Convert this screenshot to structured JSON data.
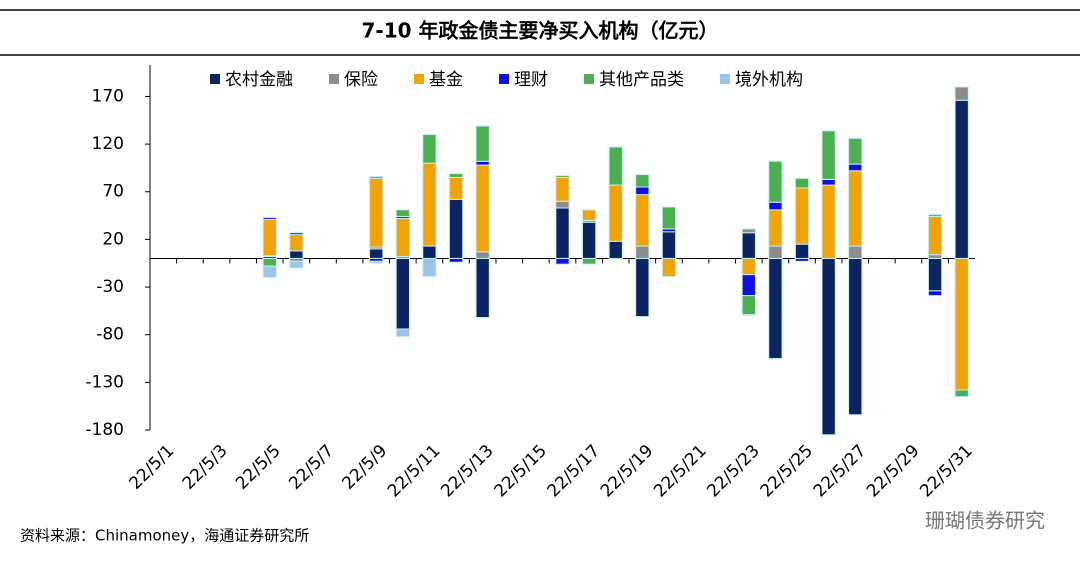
{
  "chart_data": {
    "type": "stacked-bar",
    "title": "7-10 年政金债主要净买入机构（亿元）",
    "source": "资料来源：Chinamoney，海通证券研究所",
    "watermark": "珊瑚债券研究",
    "categories": [
      "22/5/1",
      null,
      "22/5/3",
      null,
      "22/5/5",
      null,
      "22/5/7",
      null,
      "22/5/9",
      null,
      "22/5/11",
      null,
      "22/5/13",
      null,
      "22/5/15",
      null,
      "22/5/17",
      null,
      "22/5/19",
      null,
      "22/5/21",
      null,
      "22/5/23",
      null,
      "22/5/25",
      null,
      "22/5/27",
      null,
      "22/5/29",
      null,
      "22/5/31"
    ],
    "series": [
      {
        "name": "农村金融",
        "color": "#0c2461",
        "values": [
          null,
          null,
          null,
          null,
          2,
          8,
          null,
          null,
          10,
          -74,
          13,
          62,
          -62,
          null,
          null,
          53,
          38,
          18,
          -61,
          28,
          null,
          null,
          27,
          -105,
          15,
          -185,
          -164,
          null,
          null,
          -34,
          166
        ]
      },
      {
        "name": "保险",
        "color": "#8c8c8c",
        "values": [
          null,
          null,
          null,
          null,
          1,
          -3,
          null,
          null,
          2,
          2,
          null,
          null,
          7,
          null,
          null,
          7,
          2,
          null,
          13,
          null,
          null,
          null,
          4,
          13,
          null,
          null,
          13,
          null,
          null,
          4,
          14
        ]
      },
      {
        "name": "基金",
        "color": "#f0a30a",
        "values": [
          null,
          null,
          null,
          null,
          38,
          17,
          null,
          null,
          72,
          40,
          87,
          23,
          91,
          null,
          null,
          25,
          11,
          59,
          54,
          -19,
          null,
          null,
          -17,
          38,
          59,
          77,
          79,
          null,
          null,
          40,
          -138
        ]
      },
      {
        "name": "理财",
        "color": "#1010e0",
        "values": [
          null,
          null,
          null,
          null,
          2,
          2,
          null,
          null,
          -3,
          2,
          null,
          -4,
          4,
          null,
          null,
          -6,
          null,
          null,
          8,
          3,
          null,
          null,
          -22,
          8,
          -3,
          6,
          7,
          null,
          null,
          -5,
          null
        ]
      },
      {
        "name": "其他产品类",
        "color": "#4caf50",
        "values": [
          null,
          null,
          null,
          null,
          -8,
          null,
          null,
          null,
          2,
          7,
          30,
          4,
          37,
          null,
          null,
          2,
          -6,
          40,
          13,
          23,
          null,
          null,
          -20,
          43,
          10,
          51,
          27,
          null,
          null,
          2,
          -7
        ]
      },
      {
        "name": "境外机构",
        "color": "#9dc3e6",
        "values": [
          null,
          null,
          null,
          null,
          -12,
          -7,
          null,
          null,
          -2,
          -8,
          -19,
          null,
          null,
          null,
          null,
          null,
          null,
          null,
          null,
          null,
          null,
          null,
          -1,
          null,
          null,
          null,
          null,
          null,
          null,
          null,
          null
        ]
      }
    ],
    "ylim": [
      -180,
      203
    ],
    "yticks": [
      170,
      120,
      70,
      20,
      -30,
      -80,
      -130,
      -180
    ]
  }
}
